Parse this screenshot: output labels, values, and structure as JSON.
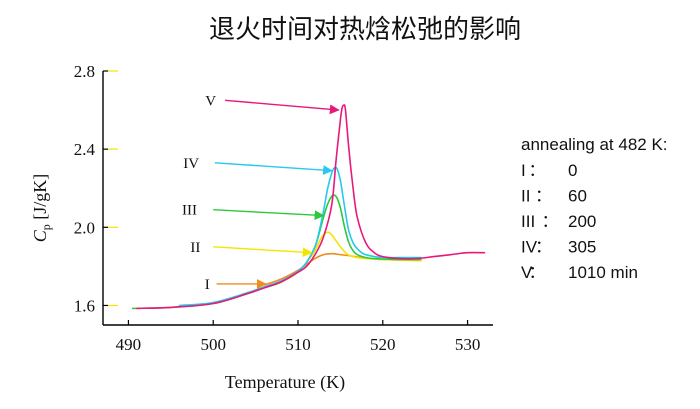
{
  "chart_data": {
    "type": "line",
    "title": "退火时间对热焓松弛的影响",
    "xlabel": "Temperature (K)",
    "ylabel_main": "C",
    "ylabel_sub": "p",
    "ylabel_unit": " [J/gK]",
    "xlim": [
      487,
      533
    ],
    "ylim": [
      1.5,
      2.8
    ],
    "xticks": [
      490,
      500,
      510,
      520,
      530
    ],
    "yticks": [
      1.6,
      2.0,
      2.4,
      2.8
    ],
    "ytick_labels": [
      "1.6",
      "2.0",
      "2.4",
      "2.8"
    ],
    "grid": false,
    "series": [
      {
        "name": "I",
        "color": "#f08c1e",
        "x": [
          506,
          508,
          510,
          511,
          512,
          513,
          514,
          515,
          516,
          517,
          518,
          519,
          520,
          522,
          524.5
        ],
        "y": [
          1.705,
          1.735,
          1.78,
          1.81,
          1.84,
          1.86,
          1.865,
          1.86,
          1.855,
          1.848,
          1.842,
          1.838,
          1.835,
          1.832,
          1.83
        ]
      },
      {
        "name": "II",
        "color": "#f2e600",
        "x": [
          500,
          504,
          506,
          508,
          510,
          511,
          512,
          512.8,
          513.5,
          514,
          514.5,
          515,
          515.5,
          516,
          517,
          518,
          519,
          520,
          522,
          524.5
        ],
        "y": [
          1.61,
          1.66,
          1.69,
          1.72,
          1.77,
          1.82,
          1.88,
          1.95,
          1.975,
          1.96,
          1.93,
          1.9,
          1.875,
          1.858,
          1.845,
          1.84,
          1.838,
          1.835,
          1.832,
          1.83
        ]
      },
      {
        "name": "III",
        "color": "#2ec83c",
        "x": [
          490.5,
          495,
          500,
          504,
          506,
          508,
          510,
          511,
          512,
          512.5,
          513,
          513.5,
          514,
          514.3,
          514.6,
          515,
          515.5,
          516,
          516.5,
          517,
          518,
          519,
          520,
          522,
          524.5
        ],
        "y": [
          1.585,
          1.59,
          1.61,
          1.66,
          1.69,
          1.72,
          1.775,
          1.82,
          1.9,
          1.97,
          2.05,
          2.12,
          2.16,
          2.165,
          2.15,
          2.1,
          2.0,
          1.92,
          1.88,
          1.86,
          1.845,
          1.84,
          1.838,
          1.835,
          1.835
        ]
      },
      {
        "name": "IV",
        "color": "#28c8f0",
        "x": [
          496,
          500,
          504,
          506,
          508,
          510,
          511,
          512,
          512.5,
          513,
          513.5,
          514,
          514.3,
          514.6,
          515,
          515.3,
          515.7,
          516,
          516.5,
          517,
          517.5,
          518,
          519,
          520,
          522,
          524.5
        ],
        "y": [
          1.6,
          1.615,
          1.665,
          1.695,
          1.725,
          1.775,
          1.82,
          1.9,
          1.98,
          2.08,
          2.2,
          2.28,
          2.305,
          2.3,
          2.24,
          2.16,
          2.05,
          1.98,
          1.92,
          1.89,
          1.87,
          1.86,
          1.85,
          1.845,
          1.845,
          1.845
        ]
      },
      {
        "name": "V",
        "color": "#e8197a",
        "x": [
          491,
          495,
          500,
          504,
          506,
          508,
          510,
          511,
          512,
          513,
          514,
          514.5,
          515,
          515.2,
          515.4,
          515.6,
          516,
          516.5,
          517,
          518,
          519,
          520,
          522,
          524,
          526,
          528,
          530,
          532
        ],
        "y": [
          1.585,
          1.59,
          1.61,
          1.66,
          1.69,
          1.72,
          1.77,
          1.8,
          1.86,
          1.95,
          2.12,
          2.35,
          2.55,
          2.61,
          2.625,
          2.6,
          2.4,
          2.2,
          2.05,
          1.92,
          1.87,
          1.85,
          1.84,
          1.84,
          1.85,
          1.86,
          1.87,
          1.87
        ]
      }
    ],
    "annotations": [
      {
        "label": "I",
        "color": "#f08c1e",
        "text_x": 499.3,
        "text_y": 1.71,
        "from_x": 500.4,
        "from_y": 1.71,
        "to_x": 506.2,
        "to_y": 1.71
      },
      {
        "label": "II",
        "color": "#f2e600",
        "text_x": 497.9,
        "text_y": 1.9,
        "from_x": 500.0,
        "from_y": 1.9,
        "to_x": 511.6,
        "to_y": 1.87
      },
      {
        "label": "III",
        "color": "#2ec83c",
        "text_x": 497.2,
        "text_y": 2.09,
        "from_x": 500.0,
        "from_y": 2.09,
        "to_x": 513.0,
        "to_y": 2.06
      },
      {
        "label": "IV",
        "color": "#28c8f0",
        "text_x": 497.4,
        "text_y": 2.33,
        "from_x": 500.2,
        "from_y": 2.33,
        "to_x": 514.0,
        "to_y": 2.29
      },
      {
        "label": "V",
        "color": "#e8197a",
        "text_x": 499.7,
        "text_y": 2.65,
        "from_x": 501.4,
        "from_y": 2.65,
        "to_x": 514.8,
        "to_y": 2.6
      }
    ]
  },
  "legend": {
    "heading": "annealing at 482 K:",
    "entries": [
      {
        "label": "I",
        "sep": "：",
        "value": "0"
      },
      {
        "label": "II",
        "sep": "：",
        "value": "60"
      },
      {
        "label": "III",
        "sep": "：",
        "value": "200"
      },
      {
        "label": "IV",
        "sep": "：",
        "value": "305"
      },
      {
        "label": "V",
        "sep": "：",
        "value": "1010 min"
      }
    ]
  }
}
